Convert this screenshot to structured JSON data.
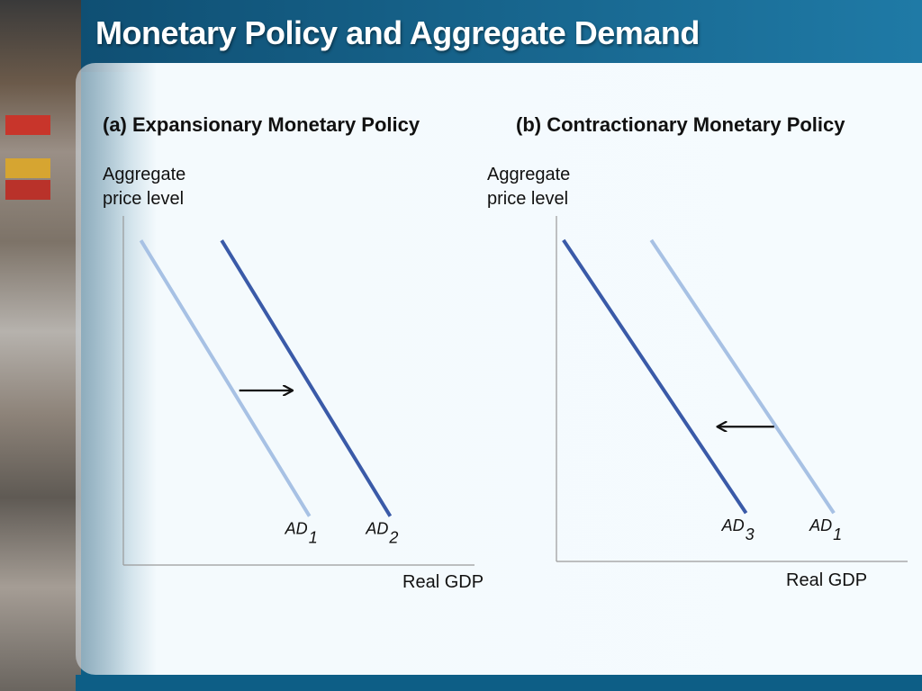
{
  "slide": {
    "title": "Monetary Policy and Aggregate Demand"
  },
  "colors": {
    "ad_original": "#a7c1e4",
    "ad_shifted": "#3a5aa8",
    "axis": "#9a9a9a",
    "arrow": "#111111",
    "title_bar": "#0f5f88"
  },
  "chart_data": [
    {
      "type": "line",
      "title": "(a) Expansionary Monetary Policy",
      "xlabel": "Real GDP",
      "ylabel": "Aggregate price level",
      "grid": false,
      "series": [
        {
          "name": "AD1",
          "label_main": "AD",
          "label_sub": "1",
          "style": "light",
          "x": [
            0.05,
            0.53
          ],
          "y": [
            0.93,
            0.14
          ]
        },
        {
          "name": "AD2",
          "label_main": "AD",
          "label_sub": "2",
          "style": "dark",
          "x": [
            0.28,
            0.76
          ],
          "y": [
            0.93,
            0.14
          ]
        }
      ],
      "arrow": {
        "direction": "right",
        "x_from": 0.33,
        "x_to": 0.48,
        "y": 0.5
      }
    },
    {
      "type": "line",
      "title": "(b) Contractionary Monetary Policy",
      "xlabel": "Real GDP",
      "ylabel": "Aggregate price level",
      "grid": false,
      "series": [
        {
          "name": "AD3",
          "label_main": "AD",
          "label_sub": "3",
          "style": "dark",
          "x": [
            0.02,
            0.54
          ],
          "y": [
            0.93,
            0.14
          ]
        },
        {
          "name": "AD1",
          "label_main": "AD",
          "label_sub": "1",
          "style": "light",
          "x": [
            0.27,
            0.79
          ],
          "y": [
            0.93,
            0.14
          ]
        }
      ],
      "arrow": {
        "direction": "left",
        "x_from": 0.62,
        "x_to": 0.46,
        "y": 0.39
      }
    }
  ]
}
